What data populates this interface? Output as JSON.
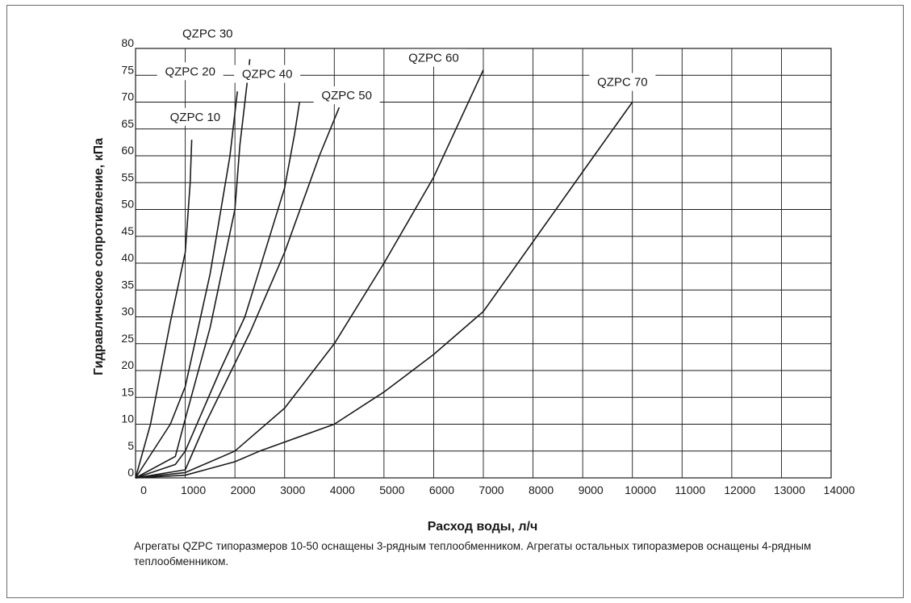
{
  "chart_data": {
    "type": "line",
    "xlabel": "Расход воды, л/ч",
    "ylabel": "Гидравлическое сопротивление, кПа",
    "xlim": [
      0,
      14000
    ],
    "ylim": [
      0,
      80
    ],
    "x_ticks": [
      0,
      1000,
      2000,
      3000,
      4000,
      5000,
      6000,
      7000,
      8000,
      9000,
      10000,
      11000,
      12000,
      13000,
      14000
    ],
    "y_ticks": [
      0,
      5,
      10,
      15,
      20,
      25,
      30,
      35,
      40,
      45,
      50,
      55,
      60,
      65,
      70,
      75,
      80
    ],
    "grid": true,
    "series": [
      {
        "name": "QZPC 10",
        "points": [
          [
            0,
            0
          ],
          [
            300,
            10
          ],
          [
            700,
            29
          ],
          [
            1000,
            42
          ],
          [
            1100,
            55
          ],
          [
            1130,
            63
          ]
        ]
      },
      {
        "name": "QZPC 20",
        "points": [
          [
            0,
            0
          ],
          [
            700,
            10
          ],
          [
            1000,
            17
          ],
          [
            1500,
            38
          ],
          [
            1900,
            60
          ],
          [
            2050,
            72
          ]
        ]
      },
      {
        "name": "QZPC 30",
        "points": [
          [
            0,
            0
          ],
          [
            800,
            4
          ],
          [
            1000,
            11
          ],
          [
            1500,
            28
          ],
          [
            2000,
            50
          ],
          [
            2100,
            62
          ],
          [
            2200,
            70
          ],
          [
            2300,
            78
          ]
        ]
      },
      {
        "name": "QZPC 40",
        "points": [
          [
            0,
            0
          ],
          [
            800,
            2.5
          ],
          [
            1000,
            5
          ],
          [
            1700,
            20
          ],
          [
            2200,
            30
          ],
          [
            2600,
            42
          ],
          [
            3000,
            54
          ],
          [
            3200,
            64
          ],
          [
            3300,
            70
          ]
        ]
      },
      {
        "name": "QZPC 50",
        "points": [
          [
            0,
            0
          ],
          [
            1000,
            1.5
          ],
          [
            1400,
            10
          ],
          [
            2300,
            27
          ],
          [
            3000,
            42
          ],
          [
            3700,
            60
          ],
          [
            4100,
            69
          ]
        ]
      },
      {
        "name": "QZPC 60",
        "points": [
          [
            0,
            0
          ],
          [
            1000,
            1
          ],
          [
            2000,
            5
          ],
          [
            3000,
            13
          ],
          [
            4000,
            25
          ],
          [
            5000,
            40
          ],
          [
            6000,
            56
          ],
          [
            7000,
            76
          ]
        ]
      },
      {
        "name": "QZPC 70",
        "points": [
          [
            0,
            0
          ],
          [
            1000,
            0.5
          ],
          [
            2000,
            3
          ],
          [
            2500,
            5
          ],
          [
            4000,
            10
          ],
          [
            5000,
            16
          ],
          [
            6000,
            23
          ],
          [
            7000,
            31
          ],
          [
            8000,
            44
          ],
          [
            9000,
            57
          ],
          [
            10000,
            70
          ]
        ]
      }
    ],
    "labels": [
      {
        "text": "QZPC 10",
        "x": 1200,
        "y": 66.5,
        "anchor_x": 1130,
        "anchor_y": 63
      },
      {
        "text": "QZPC 20",
        "x": 1100,
        "y": 75,
        "anchor_x": 1100,
        "anchor_y": 68
      },
      {
        "text": "QZPC 30",
        "x": 1450,
        "y": 82,
        "anchor_x": 2300,
        "anchor_y": 79
      },
      {
        "text": "QZPC 40",
        "x": 2650,
        "y": 74.5,
        "anchor_x": 3150,
        "anchor_y": 72
      },
      {
        "text": "QZPC 50",
        "x": 4250,
        "y": 70.5,
        "anchor_x": 4100,
        "anchor_y": 69.5
      },
      {
        "text": "QZPC 60",
        "x": 6000,
        "y": 77.5,
        "anchor_x": 7000,
        "anchor_y": 76
      },
      {
        "text": "QZPC 70",
        "x": 9800,
        "y": 73,
        "anchor_x": 10000,
        "anchor_y": 70.5
      }
    ]
  },
  "footnote": "Агрегаты QZPC типоразмеров 10-50 оснащены 3-рядным теплообменником. Агрегаты остальных типоразмеров оснащены 4-рядным теплообменником."
}
